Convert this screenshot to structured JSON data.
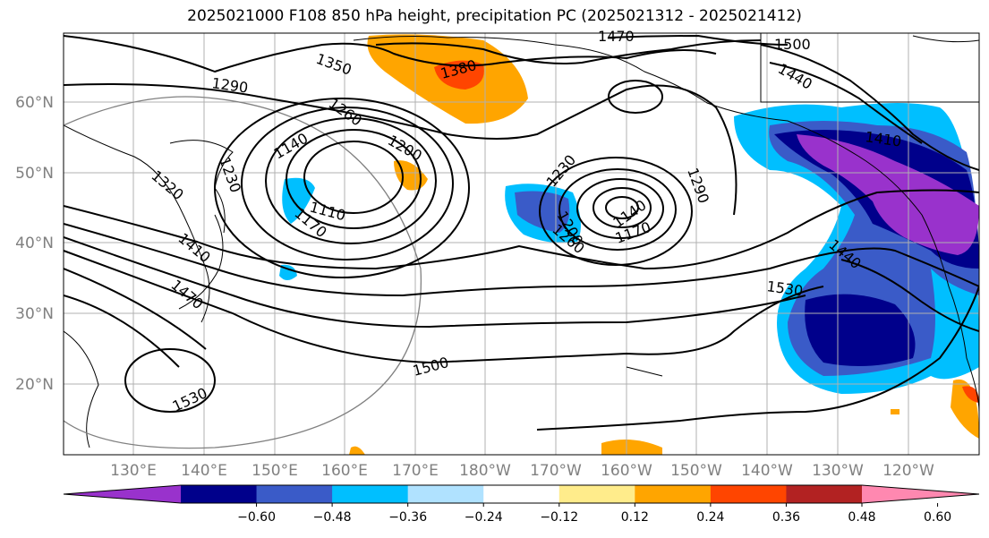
{
  "title": "2025021000 F108 850 hPa height, precipitation PC (2025021312 - 2025021412)",
  "lat_labels": [
    "60°N",
    "50°N",
    "40°N",
    "30°N",
    "20°N"
  ],
  "lon_labels": [
    "130°E",
    "140°E",
    "150°E",
    "160°E",
    "170°E",
    "180°W",
    "170°W",
    "160°W",
    "150°W",
    "140°W",
    "130°W",
    "120°W"
  ],
  "contour_labels": [
    "1290",
    "1350",
    "1380",
    "1470",
    "1500",
    "1440",
    "1260",
    "1200",
    "1140",
    "1110",
    "1170",
    "1230",
    "1320",
    "1410",
    "1530",
    "1500",
    "1530",
    "1440",
    "1410",
    "1470",
    "1290",
    "1140",
    "1170",
    "1200",
    "1260",
    "1230"
  ],
  "colorbar": {
    "colors": [
      "#9932cc",
      "#00008b",
      "#3a5bc8",
      "#00bfff",
      "#b0e2ff",
      "#ffffff",
      "#ffec8b",
      "#ffa500",
      "#ff4500",
      "#b22222",
      "#ff88b0"
    ],
    "tick_labels": [
      "−0.60",
      "−0.48",
      "−0.36",
      "−0.24",
      "−0.12",
      "0.12",
      "0.24",
      "0.36",
      "0.48",
      "0.60"
    ]
  }
}
